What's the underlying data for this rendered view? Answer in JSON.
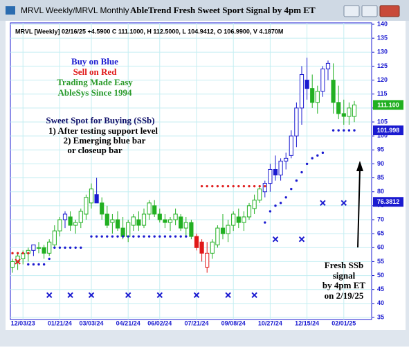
{
  "chart_data": {
    "type": "candlestick",
    "window_title": "MRVL Weekly/MRVL Monthly",
    "title": "AbleTrend Fresh Sweet Sport Signal by 4pm ET",
    "header": "MRVL [Weekly] 02/16/25 +4.5900 C 111.1000, H 112.5000, L 104.9412, O 106.9900, V 4.1870M",
    "categories": [
      null,
      null,
      "12/03/23",
      null,
      null,
      null,
      null,
      null,
      null,
      "01/21/24",
      null,
      null,
      null,
      null,
      null,
      "03/03/24",
      null,
      null,
      null,
      null,
      null,
      null,
      "04/21/24",
      null,
      null,
      null,
      null,
      null,
      "06/02/24",
      null,
      null,
      null,
      null,
      null,
      null,
      "07/21/24",
      null,
      null,
      null,
      null,
      null,
      null,
      "09/08/24",
      null,
      null,
      null,
      null,
      null,
      null,
      "10/27/24",
      null,
      null,
      null,
      null,
      null,
      null,
      "12/15/24",
      null,
      null,
      null,
      null,
      null,
      null,
      "02/01/25",
      null,
      null
    ],
    "open": [
      53,
      55,
      56,
      58,
      59,
      60,
      60,
      58,
      61,
      66,
      70,
      71,
      68,
      69,
      72,
      76,
      79,
      76,
      72,
      69,
      70,
      67,
      64,
      68,
      70,
      68,
      72,
      75,
      72,
      70,
      69,
      70,
      71,
      67,
      69,
      64,
      62,
      53,
      58,
      61,
      67,
      65,
      68,
      71,
      69,
      71,
      74,
      77,
      80,
      83,
      88,
      86,
      91,
      93,
      100,
      110,
      120,
      117,
      112,
      116,
      124,
      120,
      112,
      108,
      107,
      106.99
    ],
    "high": [
      56,
      58,
      59,
      60,
      61,
      62,
      61,
      63,
      68,
      71,
      73,
      73,
      70,
      74,
      79,
      83,
      85,
      78,
      75,
      72,
      73,
      71,
      70,
      72,
      73,
      74,
      77,
      77,
      74,
      72,
      71,
      74,
      72,
      71,
      70,
      65,
      63,
      62,
      63,
      68,
      72,
      70,
      73,
      74,
      73,
      76,
      79,
      82,
      84,
      90,
      93,
      92,
      94,
      102,
      112,
      125,
      128,
      122,
      118,
      125,
      127,
      126,
      118,
      113,
      112,
      112.5
    ],
    "low": [
      51,
      52,
      54,
      55,
      57,
      58,
      56,
      57,
      60,
      64,
      67,
      66,
      65,
      67,
      70,
      74,
      76,
      70,
      67,
      65,
      66,
      63,
      62,
      66,
      66,
      67,
      70,
      71,
      69,
      67,
      66,
      68,
      66,
      64,
      63,
      59,
      55,
      51,
      56,
      60,
      63,
      62,
      66,
      67,
      66,
      70,
      72,
      76,
      78,
      80,
      84,
      84,
      88,
      92,
      96,
      104,
      113,
      110,
      108,
      114,
      120,
      108,
      106,
      104,
      104,
      104.9412
    ],
    "close": [
      55,
      57,
      58,
      59,
      61,
      60,
      58,
      62,
      66,
      70,
      72,
      68,
      69,
      73,
      78,
      81,
      76,
      72,
      68,
      70,
      67,
      64,
      69,
      71,
      68,
      72,
      76,
      72,
      70,
      69,
      70,
      72,
      67,
      69,
      64,
      60,
      58,
      58,
      62,
      67,
      65,
      68,
      72,
      69,
      71,
      75,
      77,
      81,
      83,
      88,
      86,
      91,
      92,
      100,
      110,
      122,
      117,
      112,
      116,
      124,
      126,
      112,
      108,
      107,
      110,
      111.1
    ],
    "candle_colors": [
      "#22b022",
      "#22b022",
      "#22b022",
      "#22b022",
      "#1a1ad0",
      "#22b022",
      "#22b022",
      "#22b022",
      "#22b022",
      "#22b022",
      "#1a1ad0",
      "#22b022",
      "#22b022",
      "#22b022",
      "#22b022",
      "#22b022",
      "#1a1ad0",
      "#22b022",
      "#22b022",
      "#22b022",
      "#22b022",
      "#22b022",
      "#22b022",
      "#22b022",
      "#22b022",
      "#22b022",
      "#22b022",
      "#22b022",
      "#22b022",
      "#22b022",
      "#22b022",
      "#22b022",
      "#22b022",
      "#22b022",
      "#22b022",
      "#e01818",
      "#e01818",
      "#e01818",
      "#22b022",
      "#22b022",
      "#22b022",
      "#22b022",
      "#22b022",
      "#22b022",
      "#22b022",
      "#22b022",
      "#22b022",
      "#22b022",
      "#1a1ad0",
      "#1a1ad0",
      "#1a1ad0",
      "#1a1ad0",
      "#1a1ad0",
      "#1a1ad0",
      "#1a1ad0",
      "#1a1ad0",
      "#1a1ad0",
      "#22b022",
      "#22b022",
      "#1a1ad0",
      "#1a1ad0",
      "#22b022",
      "#22b022",
      "#22b022",
      "#22b022",
      "#22b022"
    ],
    "support_dots": {
      "color": "#1a1ad0",
      "values": [
        null,
        null,
        null,
        54,
        54,
        54,
        54,
        56,
        60,
        60,
        60,
        60,
        60,
        60,
        null,
        64,
        64,
        64,
        64,
        64,
        64,
        64,
        64,
        64,
        64,
        64,
        64,
        64,
        64,
        64,
        64,
        64,
        64,
        64,
        null,
        null,
        null,
        null,
        null,
        null,
        null,
        null,
        null,
        null,
        null,
        null,
        null,
        null,
        69,
        73,
        75,
        76,
        78,
        81,
        84,
        87,
        90,
        92,
        93,
        94,
        null,
        102,
        102,
        102,
        102,
        102
      ]
    },
    "resistance_dots": {
      "color": "#e02020",
      "values": [
        58,
        58,
        58,
        58,
        null,
        null,
        null,
        null,
        null,
        null,
        null,
        null,
        null,
        null,
        null,
        null,
        null,
        null,
        null,
        null,
        null,
        null,
        null,
        null,
        null,
        null,
        null,
        null,
        null,
        null,
        null,
        null,
        null,
        null,
        null,
        null,
        82,
        82,
        82,
        82,
        82,
        82,
        82,
        82,
        82,
        82,
        82,
        82,
        82,
        null,
        null,
        null,
        null,
        null,
        null,
        null,
        null,
        null,
        null,
        null,
        null,
        null,
        null,
        null,
        null,
        null
      ]
    },
    "x_markers": [
      {
        "color": "#1a1ad0",
        "values": [
          null,
          null,
          null,
          null,
          null,
          null,
          null,
          43,
          null,
          null,
          null,
          43,
          null,
          null,
          null,
          43,
          null,
          null,
          null,
          null,
          null,
          null,
          43,
          null,
          null,
          null,
          null,
          null,
          43,
          null,
          null,
          null,
          null,
          null,
          null,
          43,
          null,
          null,
          null,
          null,
          null,
          43,
          null,
          null,
          null,
          null,
          43,
          null,
          null,
          null,
          63,
          null,
          null,
          null,
          null,
          63,
          null,
          null,
          null,
          76,
          null,
          null,
          null,
          76,
          null,
          null
        ]
      },
      {
        "color": "#e02020",
        "values": [
          null,
          55,
          null,
          null,
          null,
          null,
          null,
          null,
          null,
          null,
          null,
          null,
          null,
          null,
          null,
          null,
          null,
          null,
          null,
          null,
          null,
          null,
          null,
          null,
          null,
          null,
          null,
          null,
          null,
          null,
          null,
          null,
          null,
          null,
          null,
          null,
          null,
          null,
          null,
          null,
          null,
          null,
          null,
          null,
          null,
          null,
          null,
          null,
          null,
          null,
          null,
          null,
          null,
          null,
          null,
          null,
          null,
          null,
          null,
          null,
          null,
          null,
          null,
          null,
          null,
          null
        ]
      }
    ],
    "price_tags": [
      {
        "value": 111.1,
        "label": "111.100",
        "color": "#22b022"
      },
      {
        "value": 101.998,
        "label": "101.998",
        "color": "#1a1ad0"
      },
      {
        "value": 76.3812,
        "label": "76.3812",
        "color": "#1a1ad0"
      }
    ],
    "annotations": [
      {
        "text": "Buy on Blue",
        "color": "#1a1ad0"
      },
      {
        "text": "Sell on Red",
        "color": "#e01818"
      },
      {
        "text": "Trading Made Easy",
        "color": "#2a9a2a"
      },
      {
        "text": "AbleSys Since 1994",
        "color": "#2a9a2a"
      },
      {
        "text": "Sweet Spot for Buying (SSb)",
        "color": "#10106a"
      },
      {
        "text": "1) After testing support level",
        "color": "#000000"
      },
      {
        "text": "2) Emerging blue bar",
        "color": "#000000"
      },
      {
        "text": "or closeup bar",
        "color": "#000000"
      },
      {
        "text": "Fresh SSb",
        "color": "#000000"
      },
      {
        "text": "signal",
        "color": "#000000"
      },
      {
        "text": "by 4pm ET",
        "color": "#000000"
      },
      {
        "text": "on 2/19/25",
        "color": "#000000"
      }
    ],
    "ylim": [
      35,
      140
    ],
    "yticks": [
      35,
      40,
      45,
      50,
      55,
      60,
      65,
      70,
      75,
      80,
      85,
      90,
      95,
      100,
      105,
      110,
      115,
      120,
      125,
      130,
      135,
      140
    ],
    "grid": true,
    "grid_color": "#c4eef2"
  }
}
